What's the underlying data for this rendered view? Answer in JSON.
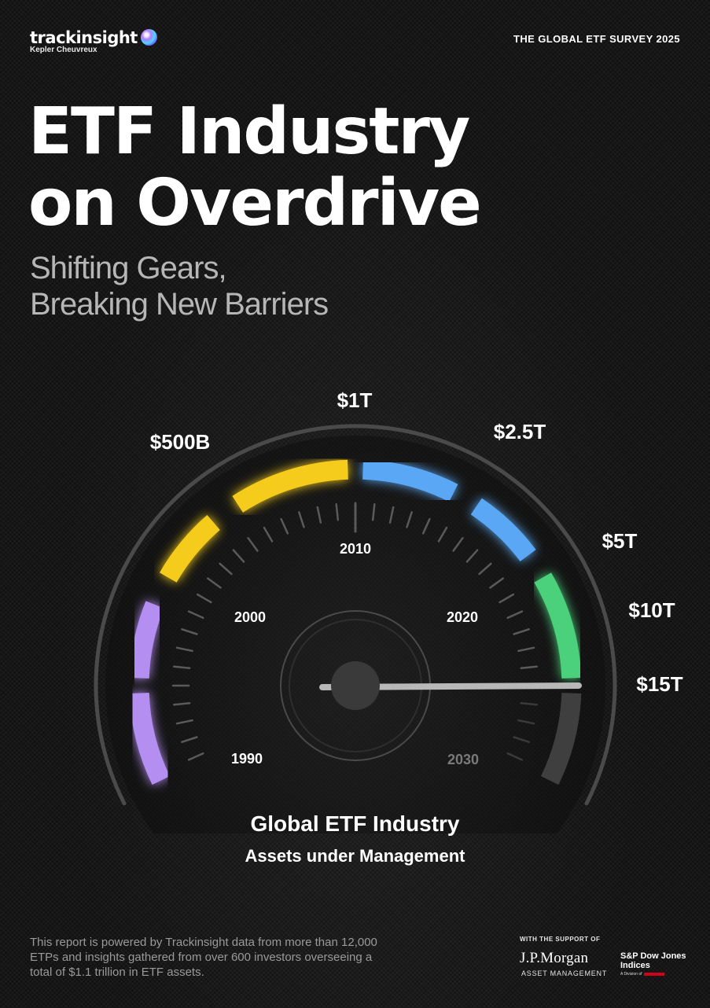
{
  "brand": {
    "logo_name": "trackinsight",
    "logo_sub": "Kepler Cheuvreux",
    "logo_icon": "orb-icon"
  },
  "header": {
    "survey": "THE GLOBAL ETF SURVEY 2025"
  },
  "title": {
    "line1": "ETF Industry",
    "line2": "on Overdrive"
  },
  "subtitle": {
    "line1": "Shifting Gears,",
    "line2": "Breaking New Barriers"
  },
  "gauge": {
    "value_labels": [
      "$500B",
      "$1T",
      "$2.5T",
      "$5T",
      "$10T",
      "$15T"
    ],
    "year_labels": [
      "1990",
      "2000",
      "2010",
      "2020",
      "2030"
    ],
    "caption_title": "Global ETF Industry",
    "caption_sub": "Assets under Management",
    "colors": {
      "purple": "#b58ef2",
      "yellow": "#f5cc1b",
      "blue": "#5aa8f5",
      "green": "#4bd07b",
      "remaining": "#3f3f3f"
    }
  },
  "footer": {
    "note": "This report is powered by Trackinsight data from more than 12,000 ETPs and insights gathered from over 600 investors overseeing a total of $1.1 trillion in ETF assets.",
    "support": "WITH THE SUPPORT OF",
    "sponsor1": "J.P.Morgan",
    "sponsor1_sub": "ASSET MANAGEMENT",
    "sponsor2": "S&P Dow Jones Indices",
    "sponsor2_sub": "A Division of"
  }
}
